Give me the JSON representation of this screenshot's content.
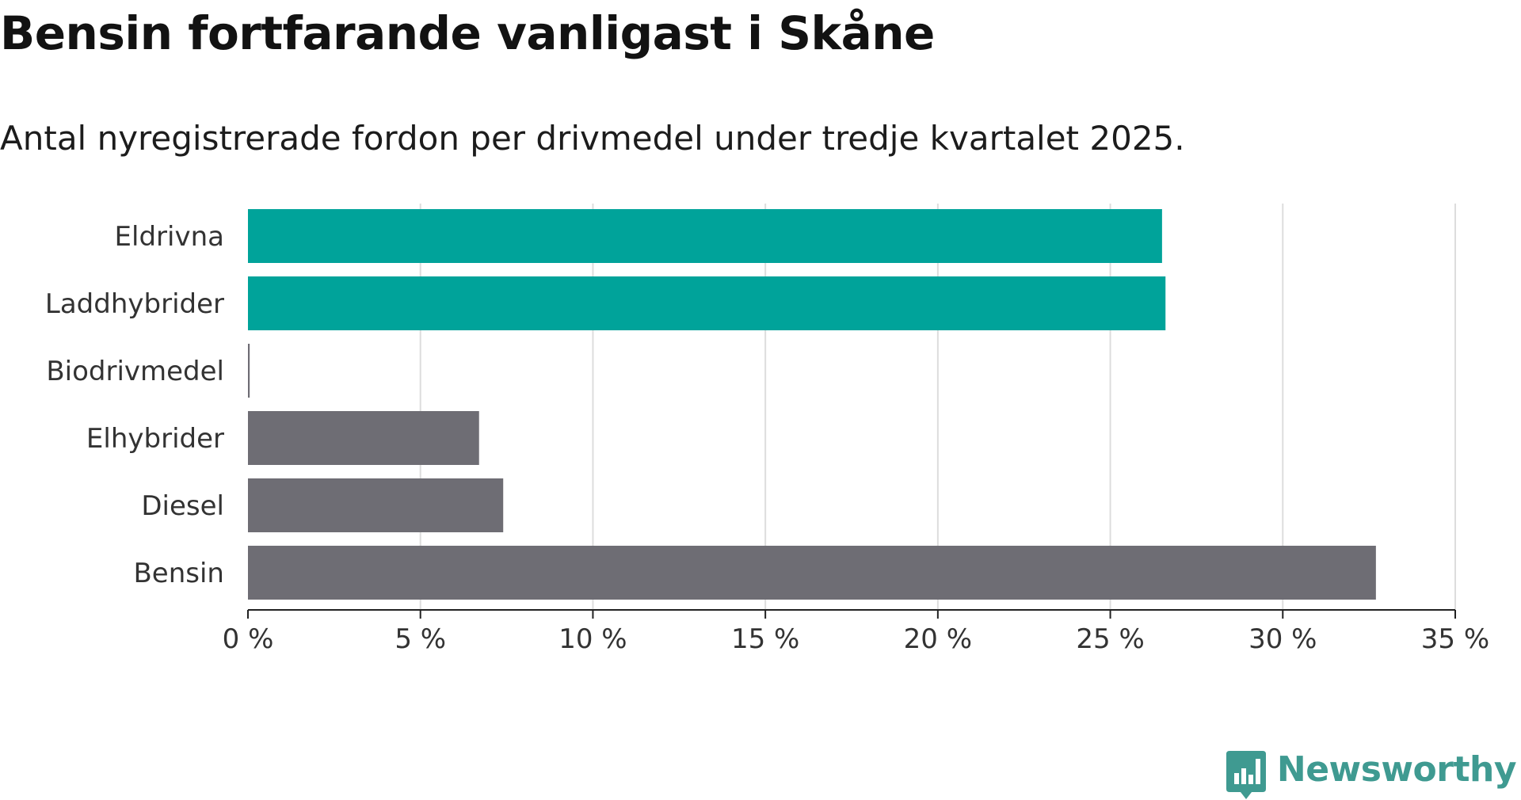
{
  "title": "Bensin fortfarande vanligast i Skåne",
  "subtitle": "Antal nyregistrerade fordon per drivmedel under tredje kvartalet 2025.",
  "brand": {
    "name": "Newsworthy",
    "color": "#3f9a91"
  },
  "colors": {
    "highlight": "#00a39a",
    "default": "#6e6d74",
    "grid": "#dddddd",
    "axis": "#222222"
  },
  "chart_data": {
    "type": "bar",
    "orientation": "horizontal",
    "categories": [
      "Eldrivna",
      "Laddhybrider",
      "Biodrivmedel",
      "Elhybrider",
      "Diesel",
      "Bensin"
    ],
    "values": [
      26.5,
      26.6,
      0.05,
      6.7,
      7.4,
      32.7
    ],
    "highlighted": [
      true,
      true,
      false,
      false,
      false,
      false
    ],
    "unit": "%",
    "xlim": [
      0,
      35
    ],
    "xticks": [
      0,
      5,
      10,
      15,
      20,
      25,
      30,
      35
    ],
    "tick_labels": [
      "0 %",
      "5 %",
      "10 %",
      "15 %",
      "20 %",
      "25 %",
      "30 %",
      "35 %"
    ],
    "grid": true,
    "title": "Bensin fortfarande vanligast i Skåne",
    "xlabel": "",
    "ylabel": ""
  }
}
